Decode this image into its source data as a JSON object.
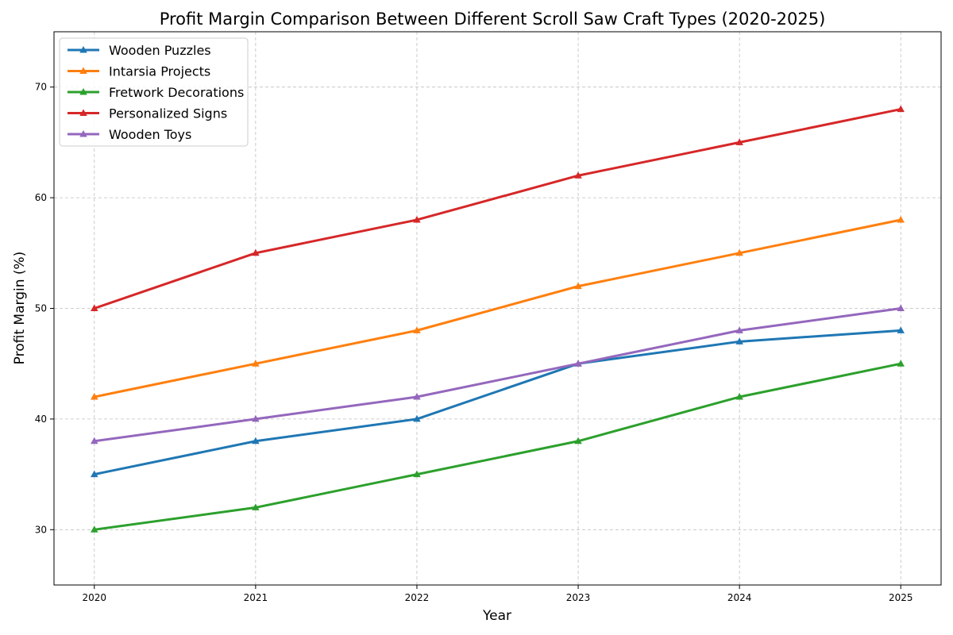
{
  "chart_data": {
    "type": "line",
    "title": "Profit Margin Comparison Between Different Scroll Saw Craft Types (2020-2025)",
    "xlabel": "Year",
    "ylabel": "Profit Margin (%)",
    "x": [
      2020,
      2021,
      2022,
      2023,
      2024,
      2025
    ],
    "xlim": [
      2019.75,
      2025.25
    ],
    "ylim": [
      25,
      75
    ],
    "yticks": [
      30,
      40,
      50,
      60,
      70
    ],
    "grid": true,
    "legend_position": "top-left",
    "marker": "triangle-up",
    "series": [
      {
        "name": "Wooden Puzzles",
        "color": "#1f77b4",
        "values": [
          35,
          38,
          40,
          45,
          47,
          48
        ]
      },
      {
        "name": "Intarsia Projects",
        "color": "#ff7f0e",
        "values": [
          42,
          45,
          48,
          52,
          55,
          58
        ]
      },
      {
        "name": "Fretwork Decorations",
        "color": "#2ca02c",
        "values": [
          30,
          32,
          35,
          38,
          42,
          45
        ]
      },
      {
        "name": "Personalized Signs",
        "color": "#d62728",
        "values": [
          50,
          55,
          58,
          62,
          65,
          68
        ]
      },
      {
        "name": "Wooden Toys",
        "color": "#9467bd",
        "values": [
          38,
          40,
          42,
          45,
          48,
          50
        ]
      }
    ]
  }
}
